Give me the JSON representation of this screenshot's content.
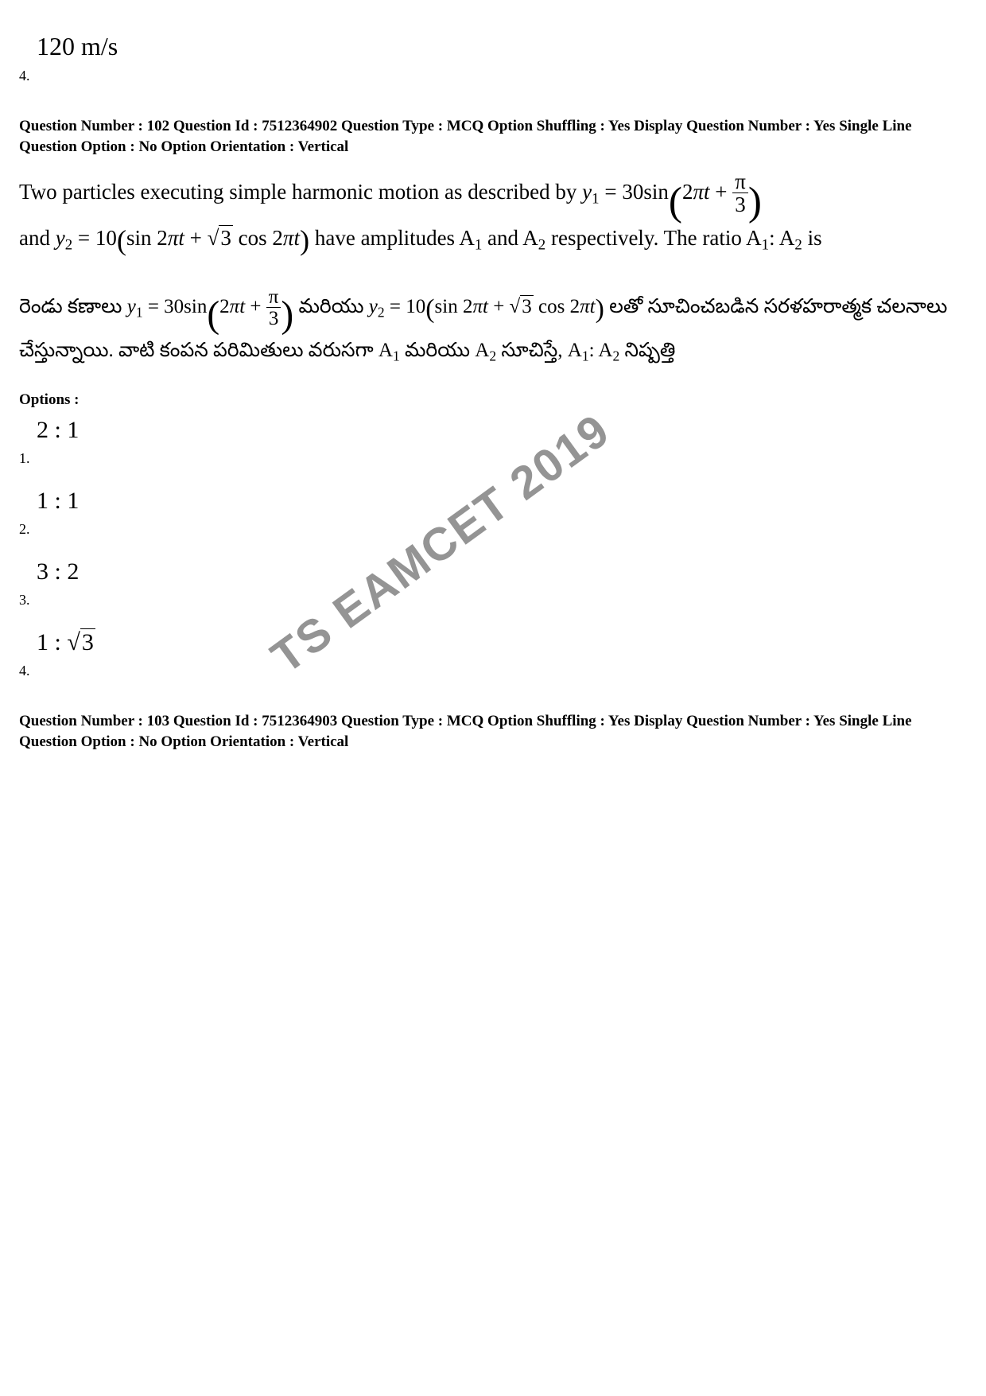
{
  "previous": {
    "option4_value": "120 m/s",
    "option4_num": "4."
  },
  "q102": {
    "meta": "Question Number : 102  Question Id : 7512364902  Question Type : MCQ  Option Shuffling : Yes  Display Question Number : Yes Single Line Question Option : No  Option Orientation : Vertical",
    "en_part1": "Two particles executing simple harmonic motion as described by ",
    "en_eq1_lhs": "y",
    "en_eq1_sub": "1",
    "en_eq1_eq": " = 30sin",
    "en_eq1_arg_a": "2",
    "en_eq1_arg_pi": "π",
    "en_eq1_arg_t": "t",
    "en_eq1_plus": " + ",
    "en_eq1_frac_num": "π",
    "en_eq1_frac_den": "3",
    "en_part2": "and  ",
    "en_eq2_lhs": "y",
    "en_eq2_sub": "2",
    "en_eq2_eq": " = 10",
    "en_eq2_sin": "sin 2",
    "en_eq2_pi1": "π",
    "en_eq2_t1": "t",
    "en_eq2_plus": " + ",
    "en_eq2_sqrt3": "3",
    "en_eq2_cos": " cos 2",
    "en_eq2_pi2": "π",
    "en_eq2_t2": "t",
    "en_part3": "  have amplitudes A",
    "en_a1sub": "1",
    "en_part4": " and A",
    "en_a2sub": "2",
    "en_part5": " respectively. The ratio A",
    "en_a1sub2": "1",
    "en_colon": ": A",
    "en_a2sub2": "2",
    "en_part6": " is",
    "te_part1": "రెండు  కణాలు   ",
    "te_part2": "   మరియు   ",
    "te_part3": "   లతో సూచించబడిన సరళహరాత్మక చలనాలు చేస్తున్నాయి. వాటి కంపన పరిమితులు వరుసగా  A",
    "te_part4": " మరియు A",
    "te_part5": " సూచిస్తే,  A",
    "te_part6": ": A",
    "te_part7": " నిష్పత్తి",
    "options_label": "Options :",
    "opt1_val": "2 : 1",
    "opt1_num": "1.",
    "opt2_val": "1 : 1",
    "opt2_num": "2.",
    "opt3_val": "3 : 2",
    "opt3_num": "3.",
    "opt4_pre": "1 : ",
    "opt4_sqrt": "3",
    "opt4_num": "4."
  },
  "q103": {
    "meta": "Question Number : 103  Question Id : 7512364903  Question Type : MCQ  Option Shuffling : Yes  Display Question Number : Yes Single Line Question Option : No  Option Orientation : Vertical"
  },
  "watermark": "TS EAMCET 2019",
  "colors": {
    "text": "#000000",
    "background": "#ffffff",
    "watermark": "rgba(0,0,0,0.42)"
  }
}
